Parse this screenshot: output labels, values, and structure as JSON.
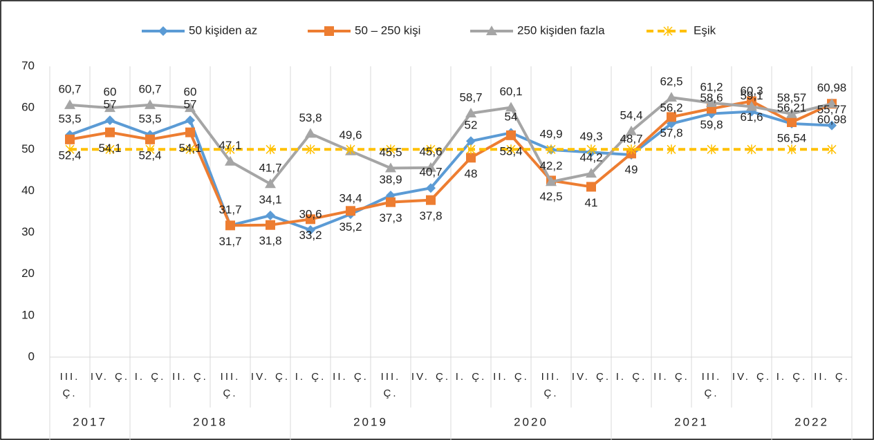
{
  "chart_data": {
    "type": "line",
    "categories": [
      "III. Ç.",
      "IV. Ç.",
      "I. Ç.",
      "II. Ç.",
      "III. Ç.",
      "IV. Ç.",
      "I. Ç.",
      "II. Ç.",
      "III. Ç.",
      "IV. Ç.",
      "I. Ç.",
      "II. Ç.",
      "III. Ç.",
      "IV. Ç.",
      "I. Ç.",
      "II. Ç.",
      "III. Ç.",
      "IV. Ç.",
      "I. Ç.",
      "II. Ç."
    ],
    "x_groups": [
      {
        "label": "2017",
        "span": 2
      },
      {
        "label": "2018",
        "span": 4
      },
      {
        "label": "2019",
        "span": 4
      },
      {
        "label": "2020",
        "span": 4
      },
      {
        "label": "2021",
        "span": 4
      },
      {
        "label": "2022",
        "span": 2
      }
    ],
    "series": [
      {
        "name": "50 kişiden az",
        "color": "#5b9bd5",
        "marker": "diamond",
        "label_position": "above",
        "values": [
          53.5,
          57,
          53.5,
          57,
          31.7,
          34.1,
          30.6,
          34.4,
          38.9,
          40.7,
          52,
          54,
          49.9,
          49.3,
          48.7,
          56.2,
          58.6,
          59.1,
          56.21,
          55.77
        ],
        "value_labels": [
          "53,5",
          "57",
          "53,5",
          "57",
          "31,7",
          "34,1",
          "30,6",
          "34,4",
          "38,9",
          "40,7",
          "52",
          "54",
          "49,9",
          "49,3",
          "48,7",
          "56,2",
          "58,6",
          "59,1",
          "56,21",
          "55,77"
        ]
      },
      {
        "name": "50 – 250 kişi",
        "color": "#ed7d31",
        "marker": "square",
        "label_position": "below",
        "values": [
          52.4,
          54.1,
          52.4,
          54.1,
          31.7,
          31.8,
          33.2,
          35.2,
          37.3,
          37.8,
          48,
          53.4,
          42.5,
          41,
          49,
          57.8,
          59.8,
          61.6,
          56.54,
          60.98
        ],
        "value_labels": [
          "52,4",
          "54,1",
          "52,4",
          "54,1",
          "31,7",
          "31,8",
          "33,2",
          "35,2",
          "37,3",
          "37,8",
          "48",
          "53,4",
          "42,5",
          "41",
          "49",
          "57,8",
          "59,8",
          "61,6",
          "56,54",
          "60,98"
        ]
      },
      {
        "name": "250 kişiden fazla",
        "color": "#a5a5a5",
        "marker": "triangle",
        "label_position": "above",
        "values": [
          60.7,
          60,
          60.7,
          60,
          47.1,
          41.7,
          53.8,
          49.6,
          45.5,
          45.6,
          58.7,
          60.1,
          42.2,
          44.2,
          54.4,
          62.5,
          61.2,
          60.3,
          58.57,
          60.98
        ],
        "value_labels": [
          "60,7",
          "60",
          "60,7",
          "60",
          "47,1",
          "41,7",
          "53,8",
          "49,6",
          "45,5",
          "45,6",
          "58,7",
          "60,1",
          "42,2",
          "44,2",
          "54,4",
          "62,5",
          "61,2",
          "60,3",
          "58,57",
          "60,98"
        ]
      },
      {
        "name": "Eşik",
        "color": "#ffc000",
        "marker": "star",
        "dashed": true,
        "values": [
          50,
          50,
          50,
          50,
          50,
          50,
          50,
          50,
          50,
          50,
          50,
          50,
          50,
          50,
          50,
          50,
          50,
          50,
          50,
          50
        ]
      }
    ],
    "ylim": [
      0,
      70
    ],
    "yticks": [
      0,
      10,
      20,
      30,
      40,
      50,
      60,
      70
    ],
    "grid": true,
    "legend": "top"
  }
}
